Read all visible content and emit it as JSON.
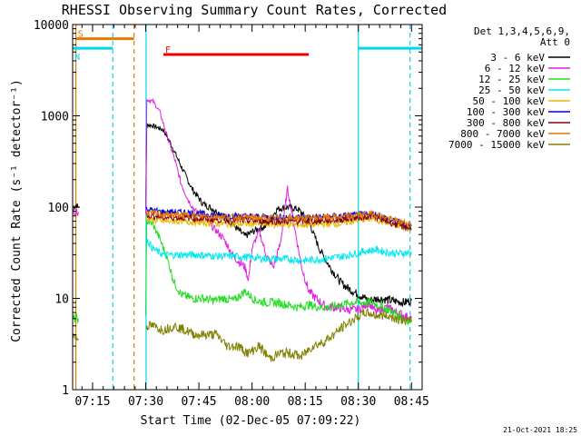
{
  "chart_data": {
    "type": "line",
    "title": "RHESSI Observing Summary Count Rates, Corrected",
    "xlabel": "Start Time (02-Dec-05 07:09:22)",
    "ylabel": "Corrected Count Rate (s⁻¹ detector⁻¹)",
    "y_scale": "log",
    "ylim": [
      1,
      10000
    ],
    "xlim_minutes": [
      429.37,
      528.0
    ],
    "x_ticks": [
      {
        "label": "07:15",
        "t": 435
      },
      {
        "label": "07:30",
        "t": 450
      },
      {
        "label": "07:45",
        "t": 465
      },
      {
        "label": "08:00",
        "t": 480
      },
      {
        "label": "08:15",
        "t": 495
      },
      {
        "label": "08:30",
        "t": 510
      },
      {
        "label": "08:45",
        "t": 525
      }
    ],
    "y_ticks": [
      {
        "label": "1",
        "v": 1
      },
      {
        "label": "10",
        "v": 10
      },
      {
        "label": "100",
        "v": 100
      },
      {
        "label": "1000",
        "v": 1000
      },
      {
        "label": "10000",
        "v": 10000
      }
    ],
    "legend_header": [
      "Det 1,3,4,5,6,9,",
      "Att 0"
    ],
    "legend_placement": "right",
    "series": [
      {
        "name": "3 - 6 keV",
        "color": "#000000",
        "points": [
          [
            429.5,
            100
          ],
          [
            430.5,
            105
          ],
          [
            431,
            98
          ],
          [
            450,
            98
          ],
          [
            450.3,
            800
          ],
          [
            452,
            780
          ],
          [
            455,
            700
          ],
          [
            457,
            500
          ],
          [
            460,
            280
          ],
          [
            463,
            160
          ],
          [
            466,
            110
          ],
          [
            469,
            95
          ],
          [
            472,
            80
          ],
          [
            475,
            62
          ],
          [
            478,
            48
          ],
          [
            481,
            56
          ],
          [
            484,
            62
          ],
          [
            487,
            95
          ],
          [
            490,
            100
          ],
          [
            493,
            95
          ],
          [
            496,
            70
          ],
          [
            499,
            35
          ],
          [
            502,
            22
          ],
          [
            505,
            15
          ],
          [
            507,
            13
          ],
          [
            510,
            11
          ],
          [
            513,
            9.5
          ],
          [
            516,
            10
          ],
          [
            519,
            9.5
          ],
          [
            523,
            9
          ],
          [
            525,
            9.5
          ]
        ]
      },
      {
        "name": "6 - 12 keV",
        "color": "#e020e0",
        "points": [
          [
            429.5,
            90
          ],
          [
            431,
            88
          ],
          [
            450,
            88
          ],
          [
            450.3,
            1500
          ],
          [
            452,
            1450
          ],
          [
            454,
            1100
          ],
          [
            456,
            600
          ],
          [
            458,
            350
          ],
          [
            460,
            180
          ],
          [
            462,
            120
          ],
          [
            464,
            90
          ],
          [
            466,
            80
          ],
          [
            469,
            60
          ],
          [
            472,
            45
          ],
          [
            475,
            28
          ],
          [
            478,
            22
          ],
          [
            479,
            16
          ],
          [
            480,
            35
          ],
          [
            482,
            55
          ],
          [
            484,
            30
          ],
          [
            486,
            22
          ],
          [
            488,
            40
          ],
          [
            490,
            160
          ],
          [
            492,
            60
          ],
          [
            494,
            22
          ],
          [
            496,
            12
          ],
          [
            498,
            10
          ],
          [
            501,
            8
          ],
          [
            504,
            8
          ],
          [
            507,
            7.5
          ],
          [
            510,
            7.5
          ],
          [
            513,
            9
          ],
          [
            515,
            7
          ],
          [
            518,
            8
          ],
          [
            521,
            7
          ],
          [
            525,
            6
          ]
        ]
      },
      {
        "name": "12 - 25 keV",
        "color": "#22dd22",
        "points": [
          [
            429.5,
            6
          ],
          [
            431,
            6
          ],
          [
            450,
            6
          ],
          [
            450.3,
            70
          ],
          [
            452,
            65
          ],
          [
            454,
            45
          ],
          [
            456,
            28
          ],
          [
            458,
            15
          ],
          [
            460,
            11
          ],
          [
            463,
            10
          ],
          [
            466,
            10
          ],
          [
            469,
            9.5
          ],
          [
            472,
            10
          ],
          [
            475,
            9.5
          ],
          [
            478,
            12
          ],
          [
            481,
            9.5
          ],
          [
            484,
            9
          ],
          [
            487,
            9
          ],
          [
            490,
            8.5
          ],
          [
            493,
            8
          ],
          [
            496,
            8.5
          ],
          [
            499,
            8
          ],
          [
            502,
            8
          ],
          [
            505,
            8.5
          ],
          [
            508,
            9
          ],
          [
            511,
            9
          ],
          [
            514,
            9
          ],
          [
            517,
            8
          ],
          [
            520,
            7
          ],
          [
            523,
            6
          ],
          [
            525,
            5.5
          ]
        ]
      },
      {
        "name": "25 - 50 keV",
        "color": "#00e8ee",
        "points": [
          [
            450.2,
            45
          ],
          [
            452,
            35
          ],
          [
            455,
            30
          ],
          [
            460,
            30
          ],
          [
            465,
            30
          ],
          [
            470,
            29
          ],
          [
            475,
            29
          ],
          [
            480,
            28
          ],
          [
            485,
            27
          ],
          [
            490,
            27
          ],
          [
            495,
            26
          ],
          [
            500,
            27
          ],
          [
            503,
            28
          ],
          [
            506,
            29
          ],
          [
            509,
            31
          ],
          [
            512,
            33
          ],
          [
            515,
            34
          ],
          [
            518,
            32
          ],
          [
            521,
            31
          ],
          [
            525,
            32
          ]
        ]
      },
      {
        "name": "50 - 100 keV",
        "color": "#e8b800",
        "points": [
          [
            450.2,
            75
          ],
          [
            452,
            72
          ],
          [
            455,
            70
          ],
          [
            460,
            70
          ],
          [
            465,
            68
          ],
          [
            470,
            66
          ],
          [
            475,
            65
          ],
          [
            480,
            66
          ],
          [
            485,
            65
          ],
          [
            490,
            64
          ],
          [
            495,
            64
          ],
          [
            500,
            65
          ],
          [
            505,
            66
          ],
          [
            510,
            72
          ],
          [
            514,
            75
          ],
          [
            518,
            68
          ],
          [
            521,
            62
          ],
          [
            525,
            58
          ]
        ]
      },
      {
        "name": "100 - 300 keV",
        "color": "#0000dd",
        "points": [
          [
            450.2,
            95
          ],
          [
            452,
            92
          ],
          [
            455,
            88
          ],
          [
            460,
            88
          ],
          [
            465,
            85
          ],
          [
            470,
            82
          ],
          [
            475,
            80
          ],
          [
            480,
            79
          ],
          [
            485,
            78
          ],
          [
            490,
            78
          ],
          [
            495,
            77
          ],
          [
            500,
            78
          ],
          [
            505,
            80
          ],
          [
            510,
            82
          ],
          [
            514,
            85
          ],
          [
            518,
            75
          ],
          [
            521,
            68
          ],
          [
            525,
            62
          ]
        ]
      },
      {
        "name": "300 - 800 keV",
        "color": "#8a0000",
        "points": [
          [
            450.2,
            82
          ],
          [
            452,
            80
          ],
          [
            455,
            77
          ],
          [
            460,
            77
          ],
          [
            465,
            75
          ],
          [
            470,
            73
          ],
          [
            475,
            72
          ],
          [
            480,
            71
          ],
          [
            485,
            70
          ],
          [
            490,
            70
          ],
          [
            495,
            70
          ],
          [
            500,
            71
          ],
          [
            505,
            73
          ],
          [
            510,
            77
          ],
          [
            514,
            80
          ],
          [
            518,
            70
          ],
          [
            521,
            64
          ],
          [
            525,
            58
          ]
        ]
      },
      {
        "name": "800 - 7000 keV",
        "color": "#e87800",
        "points": [
          [
            450.2,
            88
          ],
          [
            452,
            85
          ],
          [
            455,
            83
          ],
          [
            460,
            82
          ],
          [
            465,
            80
          ],
          [
            470,
            79
          ],
          [
            475,
            78
          ],
          [
            480,
            77
          ],
          [
            485,
            76
          ],
          [
            490,
            76
          ],
          [
            495,
            76
          ],
          [
            500,
            77
          ],
          [
            505,
            78
          ],
          [
            510,
            82
          ],
          [
            514,
            85
          ],
          [
            518,
            76
          ],
          [
            521,
            70
          ],
          [
            525,
            65
          ]
        ]
      },
      {
        "name": "7000 - 15000 keV",
        "color": "#808000",
        "points": [
          [
            429.5,
            4
          ],
          [
            431,
            3.5
          ],
          [
            450.2,
            5
          ],
          [
            452,
            5
          ],
          [
            455,
            4.5
          ],
          [
            458,
            5
          ],
          [
            461,
            4.5
          ],
          [
            464,
            4
          ],
          [
            467,
            4
          ],
          [
            470,
            4
          ],
          [
            473,
            3
          ],
          [
            476,
            3
          ],
          [
            479,
            2.5
          ],
          [
            482,
            3
          ],
          [
            485,
            2.2
          ],
          [
            488,
            2.5
          ],
          [
            491,
            2.5
          ],
          [
            494,
            2.3
          ],
          [
            497,
            3
          ],
          [
            500,
            3.3
          ],
          [
            503,
            4
          ],
          [
            506,
            5
          ],
          [
            509,
            6
          ],
          [
            512,
            7
          ],
          [
            515,
            6.5
          ],
          [
            518,
            6.5
          ],
          [
            521,
            6
          ],
          [
            525,
            5.5
          ]
        ]
      }
    ],
    "markers": [
      {
        "label": "S",
        "color": "#e87800",
        "t_start": 430.3,
        "t_end": 446.7,
        "level": 7000
      },
      {
        "label": "N",
        "color": "#00d8ee",
        "t_start": 429.4,
        "t_end": 440.7,
        "level": 5500
      },
      {
        "label": "",
        "color": "#00d8ee",
        "t_start": 510,
        "t_end": 528,
        "level": 5500
      },
      {
        "label": "F",
        "color": "#ee0000",
        "t_start": 455,
        "t_end": 496,
        "level": 4700
      }
    ],
    "vertical_lines": [
      {
        "t": 430.3,
        "color": "#e87800",
        "style": "solid"
      },
      {
        "t": 440.7,
        "color": "#00d8ee",
        "style": "dashed"
      },
      {
        "t": 446.7,
        "color": "#e87800",
        "style": "dashed"
      },
      {
        "t": 450.1,
        "color": "#00d8ee",
        "style": "solid"
      },
      {
        "t": 510.0,
        "color": "#00d8ee",
        "style": "solid"
      },
      {
        "t": 524.6,
        "color": "#00d8ee",
        "style": "dashed"
      }
    ]
  },
  "footer_date": "21-Oct-2021 18:25"
}
